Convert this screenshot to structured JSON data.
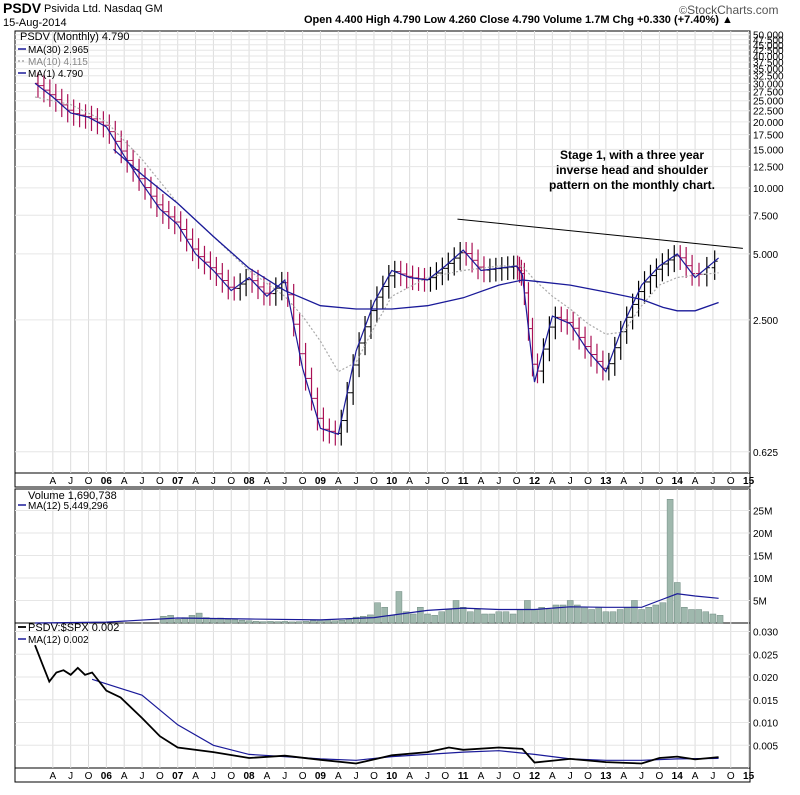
{
  "header": {
    "symbol": "PSDV",
    "company": "Psivida Ltd.",
    "exchange": "Nasdaq GM",
    "date": "15-Aug-2014",
    "ohlc_line": "Open 4.400   High 4.790   Low 4.260   Close 4.790   Volume 1.7M   Chg +0.330 (+7.40%) ▲",
    "brand": "StockCharts.com",
    "copyright": "©"
  },
  "colors": {
    "up_bar": "#000000",
    "down_bar": "#aa1155",
    "ma_long": "#1a1a99",
    "ma_short": "#aaaaaa",
    "volume_bar": "#9fb8ad",
    "ratio_line": "#000000"
  },
  "chart_data": [
    {
      "type": "line",
      "title": "PSDV (Monthly) 4.790",
      "scale": "log",
      "ylim": [
        0.5,
        52
      ],
      "y_ticks": [
        0.625,
        2.5,
        5.0,
        7.5,
        10.0,
        12.5,
        15.0,
        17.5,
        20.0,
        22.5,
        25.0,
        27.5,
        30.0,
        32.5,
        35.0,
        37.5,
        40.0,
        42.5,
        45.0,
        47.5,
        50.0
      ],
      "y_tick_labels": [
        "0.625",
        "2.500",
        "5.000",
        "7.500",
        "10.000",
        "12.500",
        "15.000",
        "17.500",
        "20.000",
        "22.500",
        "25.000",
        "27.500",
        "30.000",
        "32.500",
        "35.000",
        "37.500",
        "40.000",
        "42.500",
        "45.000",
        "47.500",
        "50.000"
      ],
      "x_ticks": [
        "A",
        "J",
        "O",
        "06",
        "A",
        "J",
        "O",
        "07",
        "A",
        "J",
        "O",
        "08",
        "A",
        "J",
        "O",
        "09",
        "A",
        "J",
        "O",
        "10",
        "A",
        "J",
        "O",
        "11",
        "A",
        "J",
        "O",
        "12",
        "A",
        "J",
        "O",
        "13",
        "A",
        "J",
        "O",
        "14",
        "A",
        "J",
        "O",
        "15"
      ],
      "series": [
        {
          "name": "MA(30)",
          "legend": "MA(30) 2.965",
          "style": "solid",
          "x": [
            2006.1,
            2006.5,
            2007.0,
            2007.5,
            2008.0,
            2008.5,
            2009.0,
            2009.5,
            2010.0,
            2010.5,
            2011.0,
            2011.5,
            2011.83,
            2012.0,
            2012.5,
            2013.0,
            2013.5,
            2013.8,
            2014.0,
            2014.25,
            2014.58
          ],
          "values": [
            15.0,
            11.5,
            8.5,
            6.0,
            4.3,
            3.4,
            2.9,
            2.8,
            2.8,
            2.9,
            3.15,
            3.6,
            3.8,
            3.75,
            3.6,
            3.35,
            3.1,
            2.85,
            2.75,
            2.75,
            3.0
          ]
        },
        {
          "name": "MA(10)",
          "legend": "MA(10) 4.115",
          "style": "dotted",
          "x": [
            2005.0,
            2005.5,
            2006.0,
            2006.5,
            2007.0,
            2007.5,
            2008.0,
            2008.5,
            2008.75,
            2009.0,
            2009.25,
            2009.5,
            2009.75,
            2010.0,
            2010.5,
            2011.0,
            2011.5,
            2011.83,
            2012.0,
            2012.25,
            2012.5,
            2012.75,
            2013.0,
            2013.25,
            2013.5,
            2013.75,
            2014.0,
            2014.25,
            2014.58
          ],
          "values": [
            26.0,
            24.0,
            20.0,
            13.5,
            8.5,
            6.0,
            4.2,
            3.2,
            2.6,
            2.0,
            1.45,
            1.6,
            2.3,
            3.2,
            3.9,
            4.2,
            4.4,
            4.4,
            3.8,
            3.2,
            2.8,
            2.4,
            2.15,
            2.2,
            2.9,
            3.6,
            3.9,
            4.0,
            4.1
          ]
        },
        {
          "name": "MA(1)",
          "legend": "MA(1) 4.790",
          "style": "solid",
          "x": [
            2005.0,
            2005.25,
            2005.5,
            2005.75,
            2006.0,
            2006.25,
            2006.5,
            2006.75,
            2007.0,
            2007.25,
            2007.5,
            2007.75,
            2008.0,
            2008.25,
            2008.5,
            2008.75,
            2009.0,
            2009.25,
            2009.5,
            2009.75,
            2010.0,
            2010.25,
            2010.5,
            2010.75,
            2011.0,
            2011.25,
            2011.5,
            2011.75,
            2011.83,
            2012.0,
            2012.25,
            2012.5,
            2012.75,
            2013.0,
            2013.25,
            2013.5,
            2013.75,
            2014.0,
            2014.25,
            2014.58
          ],
          "values": [
            30.0,
            26.0,
            22.0,
            21.0,
            19.0,
            14.0,
            10.5,
            8.0,
            6.8,
            5.0,
            4.2,
            3.4,
            3.9,
            3.2,
            3.8,
            1.5,
            0.8,
            0.75,
            1.8,
            3.0,
            4.2,
            3.9,
            3.8,
            4.4,
            5.2,
            4.2,
            4.3,
            4.4,
            4.0,
            1.3,
            2.6,
            2.4,
            1.8,
            1.45,
            2.4,
            3.6,
            4.4,
            5.0,
            3.9,
            4.79
          ]
        }
      ],
      "annotations": [
        {
          "text": "Stage 1, with a three year inverse head and shoulder pattern on the monthly chart.",
          "lines": [
            "Stage 1, with a three year",
            "inverse head and shoulder",
            "pattern on the monthly chart."
          ]
        }
      ],
      "trendline": {
        "x": [
          2010.92,
          2014.92
        ],
        "values": [
          7.2,
          5.3
        ]
      }
    },
    {
      "type": "bar",
      "title": "Volume 1,690,738",
      "y_ticks": [
        5000000,
        10000000,
        15000000,
        20000000,
        25000000
      ],
      "y_tick_labels": [
        "5M",
        "10M",
        "15M",
        "20M",
        "25M"
      ],
      "ylim": [
        0,
        28000000
      ],
      "x": [
        2006.8,
        2006.9,
        2007.0,
        2007.1,
        2007.2,
        2007.3,
        2007.4,
        2007.5,
        2007.6,
        2007.7,
        2007.8,
        2007.9,
        2008.0,
        2008.1,
        2008.2,
        2008.3,
        2008.4,
        2008.5,
        2008.6,
        2008.7,
        2008.8,
        2008.9,
        2009.0,
        2009.1,
        2009.2,
        2009.3,
        2009.4,
        2009.5,
        2009.6,
        2009.7,
        2009.8,
        2009.9,
        2010.0,
        2010.1,
        2010.2,
        2010.3,
        2010.4,
        2010.5,
        2010.6,
        2010.7,
        2010.8,
        2010.9,
        2011.0,
        2011.1,
        2011.2,
        2011.3,
        2011.4,
        2011.5,
        2011.6,
        2011.7,
        2011.8,
        2011.9,
        2012.0,
        2012.1,
        2012.2,
        2012.3,
        2012.4,
        2012.5,
        2012.6,
        2012.7,
        2012.8,
        2012.9,
        2013.0,
        2013.1,
        2013.2,
        2013.3,
        2013.4,
        2013.5,
        2013.6,
        2013.7,
        2013.8,
        2013.9,
        2014.0,
        2014.1,
        2014.2,
        2014.3,
        2014.4,
        2014.5,
        2014.6
      ],
      "values": [
        1500000,
        1700000,
        800000,
        1200000,
        1700000,
        2200000,
        1200000,
        900000,
        1100000,
        800000,
        700000,
        600000,
        500000,
        400000,
        300000,
        350000,
        300000,
        350000,
        250000,
        300000,
        400000,
        500000,
        600000,
        700000,
        500000,
        600000,
        900000,
        1300000,
        1500000,
        1800000,
        4500000,
        3500000,
        1700000,
        7000000,
        2500000,
        2000000,
        3500000,
        2000000,
        1700000,
        2500000,
        3000000,
        5000000,
        3500000,
        2500000,
        3000000,
        2000000,
        2000000,
        2500000,
        2500000,
        2000000,
        3000000,
        5000000,
        3000000,
        3500000,
        3000000,
        4000000,
        4000000,
        5000000,
        4000000,
        3500000,
        3000000,
        3500000,
        2500000,
        2500000,
        3000000,
        3500000,
        5000000,
        3000000,
        3500000,
        4000000,
        4500000,
        27500000,
        9000000,
        3500000,
        3000000,
        3000000,
        2500000,
        2000000,
        1700000
      ],
      "series": [
        {
          "name": "MA(12)",
          "legend": "MA(12) 5,449,296",
          "x": [
            2005.0,
            2006.0,
            2007.0,
            2008.0,
            2009.0,
            2009.75,
            2010.5,
            2011.0,
            2011.5,
            2012.0,
            2012.5,
            2013.0,
            2013.5,
            2013.75,
            2014.0,
            2014.25,
            2014.58
          ],
          "values": [
            0,
            200000,
            1100000,
            900000,
            700000,
            1200000,
            2800000,
            3300000,
            3000000,
            3000000,
            3600000,
            3500000,
            3500000,
            5000000,
            6500000,
            6000000,
            5500000
          ]
        }
      ]
    },
    {
      "type": "line",
      "title": "PSDV:$SPX 0.002",
      "ylim": [
        0,
        0.031
      ],
      "y_ticks": [
        0.005,
        0.01,
        0.015,
        0.02,
        0.025,
        0.03
      ],
      "y_tick_labels": [
        "0.005",
        "0.010",
        "0.015",
        "0.020",
        "0.025",
        "0.030"
      ],
      "x_ticks": [
        "A",
        "J",
        "O",
        "06",
        "A",
        "J",
        "O",
        "07",
        "A",
        "J",
        "O",
        "08",
        "A",
        "J",
        "O",
        "09",
        "A",
        "J",
        "O",
        "10",
        "A",
        "J",
        "O",
        "11",
        "A",
        "J",
        "O",
        "12",
        "A",
        "J",
        "O",
        "13",
        "A",
        "J",
        "O",
        "14",
        "A",
        "J",
        "O",
        "15"
      ],
      "series": [
        {
          "name": "PSDV:$SPX",
          "legend": "PSDV:$SPX 0.002",
          "x": [
            2005.0,
            2005.1,
            2005.2,
            2005.3,
            2005.4,
            2005.5,
            2005.6,
            2005.7,
            2005.8,
            2006.0,
            2006.2,
            2006.5,
            2006.75,
            2007.0,
            2007.5,
            2008.0,
            2008.5,
            2009.0,
            2009.5,
            2010.0,
            2010.5,
            2010.8,
            2011.0,
            2011.5,
            2011.83,
            2012.0,
            2012.5,
            2013.0,
            2013.5,
            2013.75,
            2014.0,
            2014.25,
            2014.58
          ],
          "values": [
            0.027,
            0.023,
            0.019,
            0.021,
            0.0215,
            0.0205,
            0.022,
            0.0205,
            0.021,
            0.017,
            0.0155,
            0.011,
            0.007,
            0.0045,
            0.0035,
            0.0022,
            0.0027,
            0.0018,
            0.001,
            0.0028,
            0.0035,
            0.0045,
            0.004,
            0.0045,
            0.0042,
            0.0012,
            0.002,
            0.0013,
            0.001,
            0.0022,
            0.0025,
            0.0019,
            0.0024
          ]
        },
        {
          "name": "MA(12)",
          "legend": "MA(12) 0.002",
          "x": [
            2005.8,
            2006.5,
            2007.0,
            2007.5,
            2008.0,
            2008.5,
            2009.0,
            2009.5,
            2010.0,
            2010.5,
            2011.0,
            2011.5,
            2012.0,
            2012.5,
            2013.0,
            2013.5,
            2014.0,
            2014.58
          ],
          "values": [
            0.0195,
            0.016,
            0.0095,
            0.005,
            0.003,
            0.0025,
            0.002,
            0.0017,
            0.0025,
            0.003,
            0.0035,
            0.0038,
            0.003,
            0.002,
            0.0017,
            0.0017,
            0.002,
            0.0021
          ]
        }
      ]
    }
  ]
}
